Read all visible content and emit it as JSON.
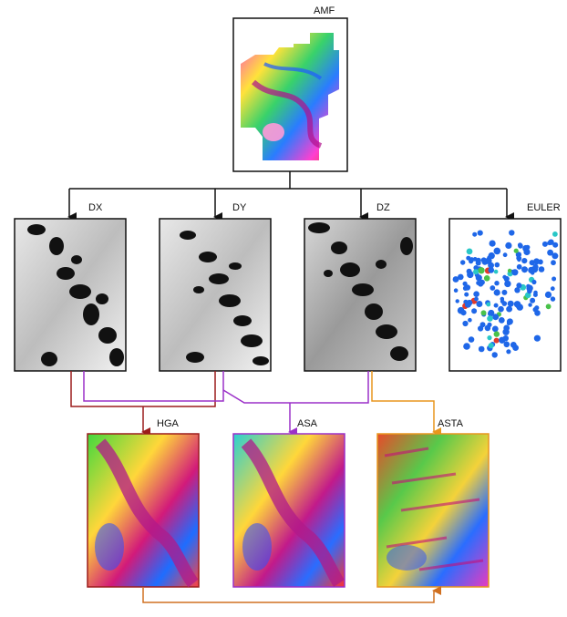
{
  "nodes": {
    "amf": {
      "label": "AMF"
    },
    "dx": {
      "label": "DX"
    },
    "dy": {
      "label": "DY"
    },
    "dz": {
      "label": "DZ"
    },
    "euler": {
      "label": "EULER"
    },
    "hga": {
      "label": "HGA"
    },
    "asa": {
      "label": "ASA"
    },
    "asta": {
      "label": "ASTA"
    }
  },
  "colors": {
    "black_arrows": "#111111",
    "dx_to_hga": "#9b1c1c",
    "dy_dz_to_asa": "#9b30c8",
    "dz_to_asta": "#e8961e",
    "hga_to_asta": "#d07020"
  },
  "image_content": {
    "amf": "colour magnetic field map",
    "dx": "greyscale x-derivative map",
    "dy": "greyscale y-derivative map",
    "dz": "greyscale z-derivative map",
    "euler": "euler deconvolution solutions scatter",
    "hga": "colour horizontal gradient amplitude map",
    "asa": "colour analytic signal amplitude map",
    "asta": "colour analytic signal tilt angle map"
  }
}
